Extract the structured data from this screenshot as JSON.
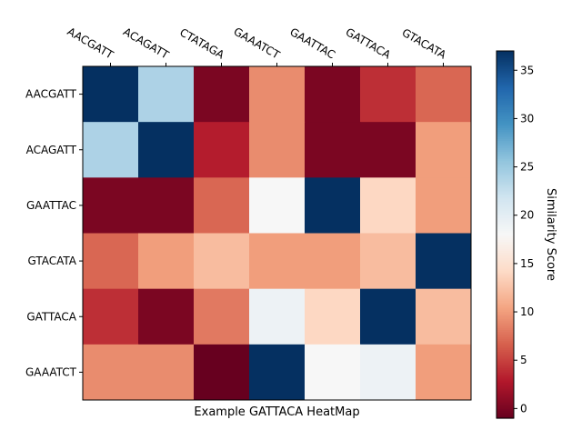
{
  "chart_data": {
    "type": "heatmap",
    "title": "",
    "xlabel": "Example GATTACA HeatMap",
    "ylabel": "",
    "columns": [
      "AACGATT",
      "ACAGATT",
      "CTATAGA",
      "GAAATCT",
      "GAATTAC",
      "GATTACA",
      "GTACATA"
    ],
    "rows": [
      "AACGATT",
      "ACAGATT",
      "GAATTAC",
      "GTACATA",
      "GATTACA",
      "GAAATCT"
    ],
    "values": [
      [
        37,
        24,
        0,
        9,
        0,
        4,
        7
      ],
      [
        24,
        37,
        3,
        9,
        0,
        0,
        10
      ],
      [
        0,
        0,
        7,
        18,
        37,
        14,
        10
      ],
      [
        7,
        10,
        12,
        10,
        10,
        12,
        37
      ],
      [
        4,
        0,
        8,
        19,
        14,
        37,
        12
      ],
      [
        9,
        9,
        -1,
        37,
        18,
        19,
        10
      ]
    ],
    "colorbar": {
      "label": "Similarity Score",
      "colormap": "RdBu",
      "vmin": -1,
      "vmax": 37,
      "ticks": [
        0,
        5,
        10,
        15,
        20,
        25,
        30,
        35
      ]
    },
    "grid": false,
    "x_tick_position": "top"
  }
}
